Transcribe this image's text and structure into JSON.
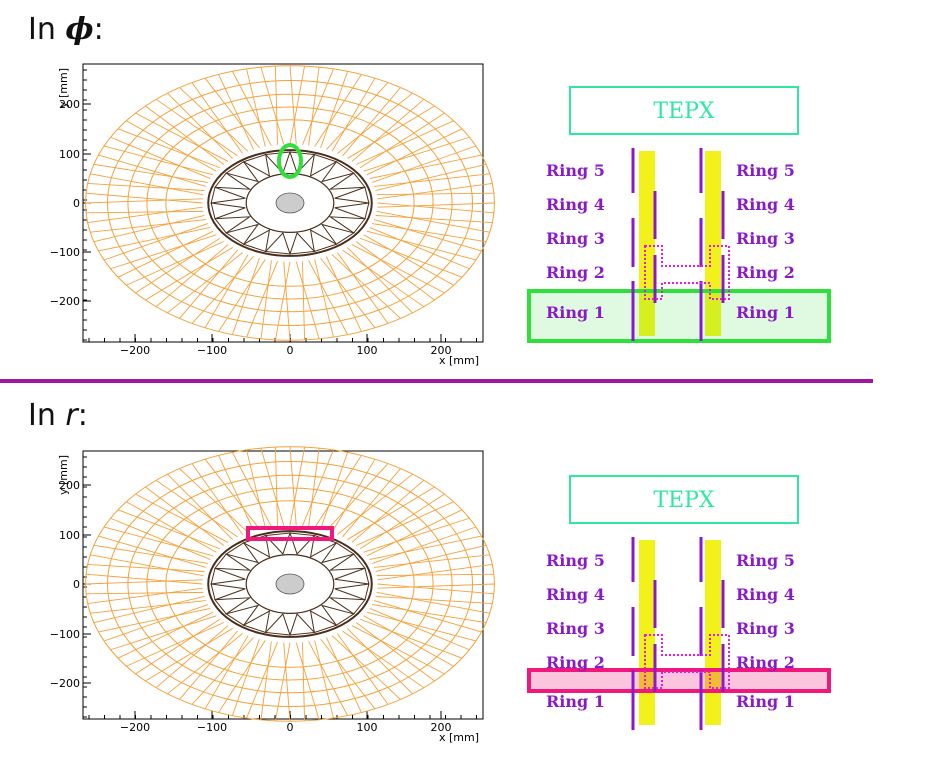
{
  "headings": {
    "phi": {
      "prefix": "In ",
      "symbol": "ϕ",
      "suffix": ":"
    },
    "r": {
      "prefix": "In ",
      "symbol": "r",
      "suffix": ":"
    }
  },
  "colors": {
    "module": "#f5a13a",
    "inner_module": "#4a2e1a",
    "highlight_phi": "#2fe03a",
    "highlight_r": "#f0187c",
    "ring_text": "#8a1ac9",
    "tepx_box": "#2fe8a0",
    "yellow_band": "#f2f21a",
    "module_bar": "#8a1ac9",
    "dotted": "#e81ae0",
    "divider": "#a0169e"
  },
  "plots": [
    {
      "id": "phi",
      "y_axis_label": "y [mm]",
      "x_axis_label": "x [mm]",
      "x_ticks": [
        "−200",
        "−100",
        "0",
        "100",
        "200"
      ],
      "y_ticks": [
        "200",
        "100",
        "0",
        "−100",
        "−200"
      ],
      "highlight_shape": "ellipse"
    },
    {
      "id": "r",
      "y_axis_label": "y [mm]",
      "x_axis_label": "x [mm]",
      "x_ticks": [
        "−200",
        "−100",
        "0",
        "100",
        "200"
      ],
      "y_ticks": [
        "200",
        "100",
        "0",
        "−100",
        "−200"
      ],
      "highlight_shape": "rectangle"
    }
  ],
  "schematics": [
    {
      "id": "phi",
      "title": "TEPX",
      "rings_left": [
        "Ring 5",
        "Ring 4",
        "Ring 3",
        "Ring 2",
        "Ring 1"
      ],
      "rings_right": [
        "Ring 5",
        "Ring 4",
        "Ring 3",
        "Ring 2",
        "Ring 1"
      ],
      "highlighted_ring": "Ring 1"
    },
    {
      "id": "r",
      "title": "TEPX",
      "rings_left": [
        "Ring 5",
        "Ring 4",
        "Ring 3",
        "Ring 2",
        "Ring 1"
      ],
      "rings_right": [
        "Ring 5",
        "Ring 4",
        "Ring 3",
        "Ring 2",
        "Ring 1"
      ],
      "highlighted_ring": "Ring 2"
    }
  ]
}
